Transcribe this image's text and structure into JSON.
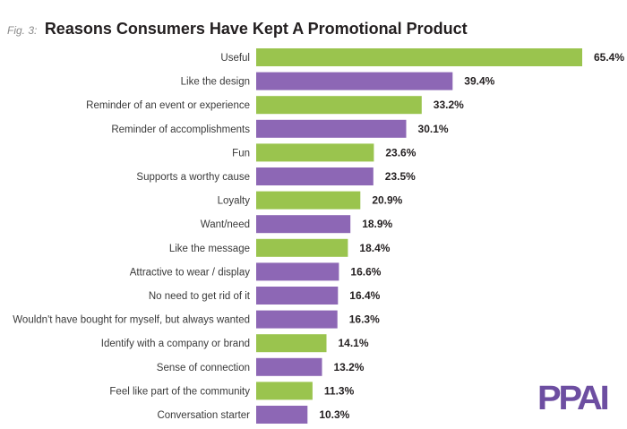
{
  "header": {
    "fig_label": "Fig. 3:",
    "title": "Reasons Consumers Have Kept A Promotional Product"
  },
  "logo": {
    "text": "PPAI",
    "color": "#6d4ea1"
  },
  "colors": {
    "green": "#9ac44e",
    "purple": "#8d67b5"
  },
  "chart_data": {
    "type": "bar",
    "orientation": "horizontal",
    "title": "Reasons Consumers Have Kept A Promotional Product",
    "value_suffix": "%",
    "xlim": [
      0,
      65.4
    ],
    "grid": false,
    "categories": [
      "Useful",
      "Like the design",
      "Reminder of an event or experience",
      "Reminder of accomplishments",
      "Fun",
      "Supports a worthy cause",
      "Loyalty",
      "Want/need",
      "Like the message",
      "Attractive to wear / display",
      "No need to get rid of it",
      "Wouldn't have bought for myself, but always wanted",
      "Identify with a company or brand",
      "Sense of connection",
      "Feel like part of the community",
      "Conversation starter"
    ],
    "values": [
      65.4,
      39.4,
      33.2,
      30.1,
      23.6,
      23.5,
      20.9,
      18.9,
      18.4,
      16.6,
      16.4,
      16.3,
      14.1,
      13.2,
      11.3,
      10.3
    ],
    "value_labels": [
      "65.4%",
      "39.4%",
      "33.2%",
      "30.1%",
      "23.6%",
      "23.5%",
      "20.9%",
      "18.9%",
      "18.4%",
      "16.6%",
      "16.4%",
      "16.3%",
      "14.1%",
      "13.2%",
      "11.3%",
      "10.3%"
    ],
    "bar_colors": [
      "green",
      "purple",
      "green",
      "purple",
      "green",
      "purple",
      "green",
      "purple",
      "green",
      "purple",
      "purple",
      "purple",
      "green",
      "purple",
      "green",
      "purple"
    ]
  }
}
